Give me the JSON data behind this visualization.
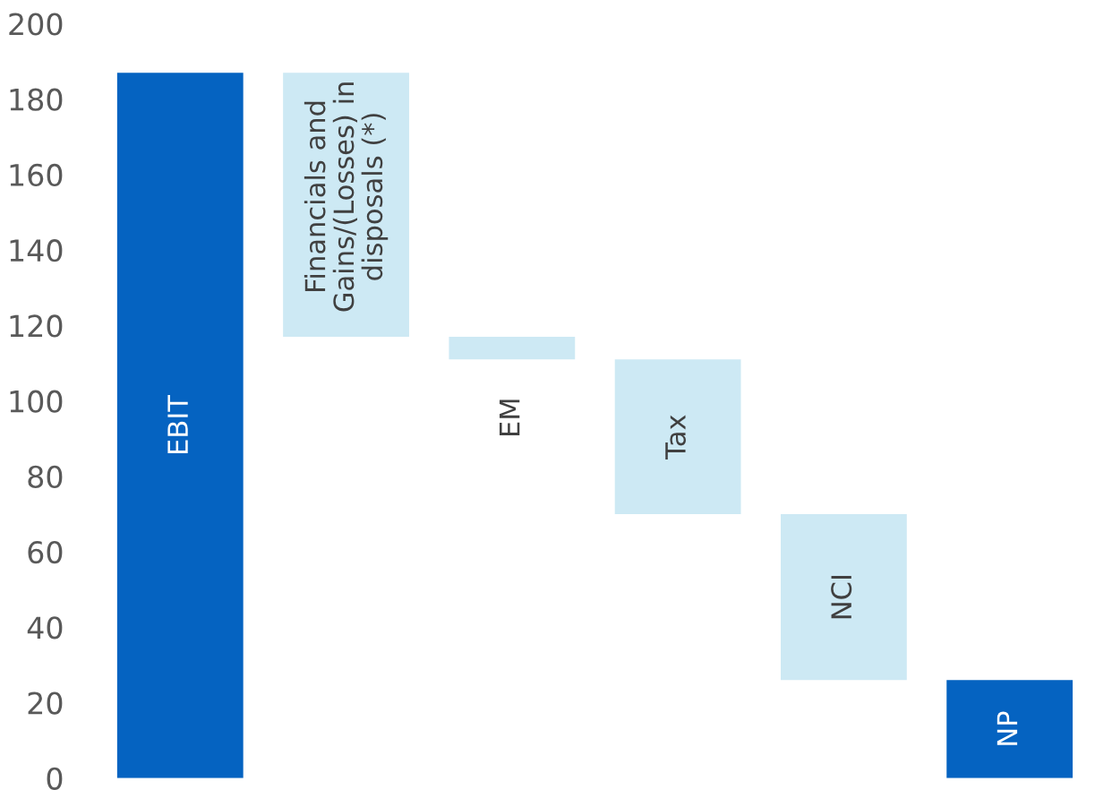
{
  "chart_data": {
    "type": "bar",
    "categories": [
      "EBIT",
      "Financials and\nGains/(Losses) in\ndisposals (*)",
      "EM",
      "Tax",
      "NCI",
      "NP"
    ],
    "values": [
      187,
      -70,
      -6,
      -41,
      -44,
      26
    ],
    "base": [
      0,
      187,
      117,
      111,
      70,
      0
    ],
    "colors": [
      "#0563c1",
      "#cde9f4",
      "#cde9f4",
      "#cde9f4",
      "#cde9f4",
      "#0563c1"
    ],
    "ylim": [
      0,
      200
    ],
    "yticks": [
      0,
      20,
      40,
      60,
      80,
      100,
      120,
      140,
      160,
      180,
      200
    ],
    "grid": false,
    "legend": false
  }
}
